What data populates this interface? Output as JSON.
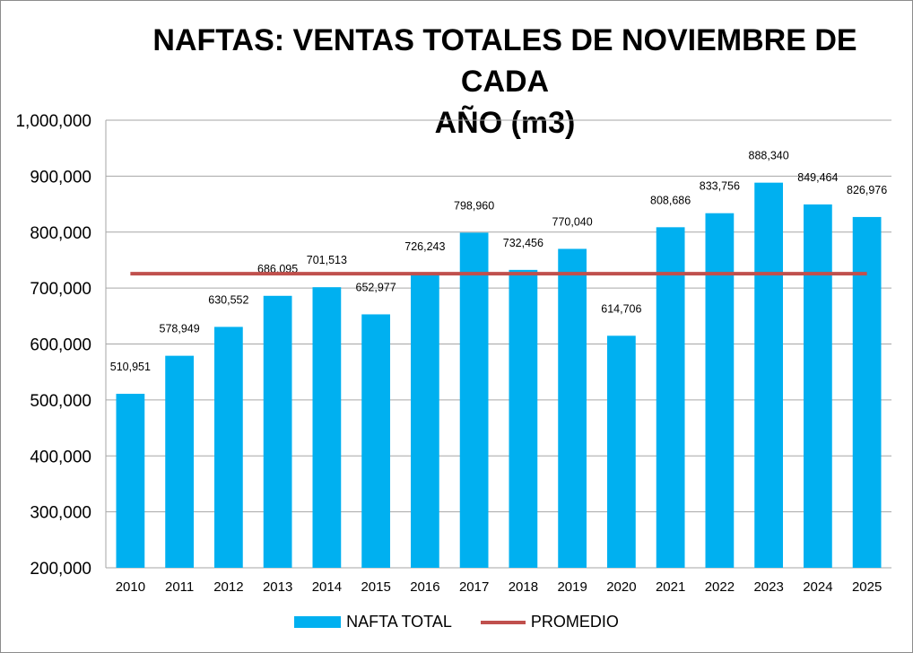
{
  "colors": {
    "bar": "#00b0f0",
    "average_line": "#c0504d",
    "grid": "#a6a6a6",
    "text": "#000000"
  },
  "chart_data": {
    "type": "bar",
    "title": "NAFTAS: VENTAS TOTALES DE NOVIEMBRE DE CADA AÑO (m3)",
    "title_lines": [
      "NAFTAS: VENTAS TOTALES DE NOVIEMBRE DE CADA",
      "AÑO (m3)"
    ],
    "xlabel": "",
    "ylabel": "",
    "ylim": [
      200000,
      1000000
    ],
    "y_ticks": [
      200000,
      300000,
      400000,
      500000,
      600000,
      700000,
      800000,
      900000,
      1000000
    ],
    "y_tick_labels": [
      "200,000",
      "300,000",
      "400,000",
      "500,000",
      "600,000",
      "700,000",
      "800,000",
      "900,000",
      "1,000,000"
    ],
    "grid": true,
    "legend_position": "bottom",
    "categories": [
      "2010",
      "2011",
      "2012",
      "2013",
      "2014",
      "2015",
      "2016",
      "2017",
      "2018",
      "2019",
      "2020",
      "2021",
      "2022",
      "2023",
      "2024",
      "2025"
    ],
    "series": [
      {
        "name": "NAFTA TOTAL",
        "type": "bar",
        "values": [
          510951,
          578949,
          630552,
          686095,
          701513,
          652977,
          726243,
          798960,
          732456,
          770040,
          614706,
          808686,
          833756,
          888340,
          849464,
          826976
        ],
        "labels": [
          "510,951",
          "578,949",
          "630,552",
          "686,095",
          "701,513",
          "652,977",
          "726,243",
          "798,960",
          "732,456",
          "770,040",
          "614,706",
          "808,686",
          "833,756",
          "888,340",
          "849,464",
          "826,976"
        ]
      },
      {
        "name": "PROMEDIO",
        "type": "line",
        "values": [
          725673,
          725673,
          725673,
          725673,
          725673,
          725673,
          725673,
          725673,
          725673,
          725673,
          725673,
          725673,
          725673,
          725673,
          725673,
          725673
        ]
      }
    ]
  },
  "legend": {
    "bar_label": "NAFTA TOTAL",
    "line_label": "PROMEDIO"
  }
}
